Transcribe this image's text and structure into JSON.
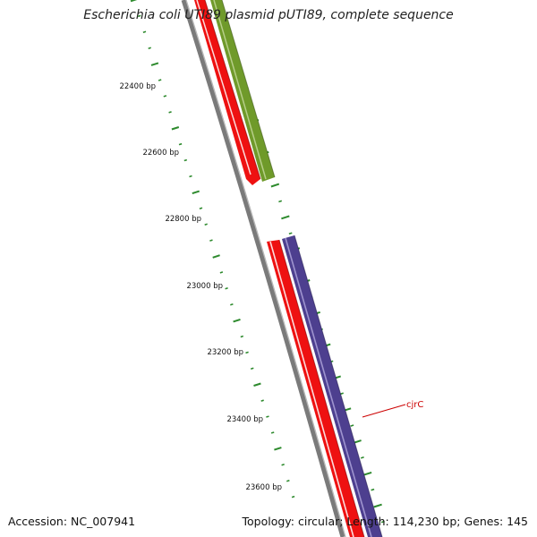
{
  "title": "Escherichia coli UTI89 plasmid pUTI89, complete sequence",
  "footer": {
    "accession": "Accession: NC_007941",
    "topology": "Topology: circular; Length: 114,230 bp; Genes: 145"
  },
  "colors": {
    "tick": "#2d8a2d",
    "backbone": "#7a7a7a",
    "feature_red": "#ee1111",
    "feature_olive": "#6f9a2a",
    "feature_purple": "#4d3f8f",
    "label_line": "#cc0000"
  },
  "scale": {
    "tick_labels": [
      "22400 bp",
      "22600 bp",
      "22800 bp",
      "23000 bp",
      "23200 bp",
      "23400 bp",
      "23600 bp"
    ]
  },
  "features": [
    {
      "label": "cjrC",
      "color": "purple"
    }
  ]
}
